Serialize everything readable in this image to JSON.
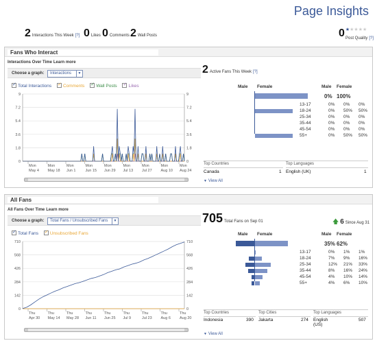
{
  "header": {
    "title": "Page Insights",
    "stats": [
      {
        "value": "2",
        "label": "Interactions This Week",
        "help": "[?]"
      },
      {
        "value": "0",
        "label": "Likes"
      },
      {
        "value": "0",
        "label": "Comments"
      },
      {
        "value": "2",
        "label": "Wall Posts"
      }
    ],
    "quality": {
      "value": "0",
      "label": "Post Quality",
      "help": "[?]",
      "stars_filled": 1,
      "stars_total": 5
    }
  },
  "interact": {
    "title": "Fans Who Interact",
    "subtitle": "Interactions Over Time",
    "learn_more": "Learn more",
    "choose_label": "Choose a graph:",
    "choose_value": "Interactions",
    "legend": [
      {
        "label": "Total Interactions",
        "color": "#3b5998"
      },
      {
        "label": "Comments",
        "color": "#e8a736"
      },
      {
        "label": "Wall Posts",
        "color": "#3c8c48"
      },
      {
        "label": "Likes",
        "color": "#9a6ab0"
      }
    ],
    "active_value": "2",
    "active_label": "Active Fans This Week",
    "active_help": "[?]",
    "top_countries_label": "Top Countries",
    "top_languages_label": "Top Languages",
    "country": {
      "name": "Canada",
      "value": "1"
    },
    "language": {
      "name": "English (UK)",
      "value": "1"
    },
    "view_all": "View All"
  },
  "interact_demo": {
    "left_male": "Male",
    "left_female": "Female",
    "right_male": "Male",
    "right_female": "Female",
    "totals": {
      "male": "0%",
      "female": "100%"
    },
    "rows": [
      {
        "age": "13-17",
        "male": "0%",
        "female": "0%",
        "total": "0%",
        "m_frac": 0,
        "f_frac": 0
      },
      {
        "age": "18-24",
        "male": "0%",
        "female": "50%",
        "total": "50%",
        "m_frac": 0,
        "f_frac": 0.5
      },
      {
        "age": "25-34",
        "male": "0%",
        "female": "0%",
        "total": "0%",
        "m_frac": 0,
        "f_frac": 0
      },
      {
        "age": "35-44",
        "male": "0%",
        "female": "0%",
        "total": "0%",
        "m_frac": 0,
        "f_frac": 0
      },
      {
        "age": "45-54",
        "male": "0%",
        "female": "0%",
        "total": "0%",
        "m_frac": 0,
        "f_frac": 0
      },
      {
        "age": "55+",
        "male": "0%",
        "female": "50%",
        "total": "50%",
        "m_frac": 0,
        "f_frac": 0.5
      }
    ]
  },
  "allfans": {
    "title": "All Fans",
    "subtitle": "All Fans Over Time",
    "learn_more": "Learn more",
    "choose_label": "Choose a graph:",
    "choose_value": "Total Fans / Unsubscribed Fans",
    "legend": [
      {
        "label": "Total Fans",
        "color": "#3b5998"
      },
      {
        "label": "Unsubscribed Fans",
        "color": "#e8a736"
      }
    ],
    "total_value": "705",
    "total_label": "Total Fans on Sep 01",
    "growth_value": "6",
    "growth_label": "Since Aug 31",
    "top_countries_label": "Top Countries",
    "top_cities_label": "Top Cities",
    "top_languages_label": "Top Languages",
    "country": {
      "name": "Indonesia",
      "value": "390"
    },
    "city": {
      "name": "Jakarta",
      "value": "274"
    },
    "language": {
      "name": "English (US)",
      "value": "507"
    },
    "view_all": "View All"
  },
  "allfans_demo": {
    "left_male": "Male",
    "left_female": "Female",
    "right_male": "Male",
    "right_female": "Female",
    "totals": {
      "male": "35%",
      "female": "62%"
    },
    "rows": [
      {
        "age": "13-17",
        "male": "0%",
        "female": "1%",
        "total": "1%",
        "m_frac": 0.0,
        "f_frac": 0.01
      },
      {
        "age": "18-24",
        "male": "7%",
        "female": "9%",
        "total": "16%",
        "m_frac": 0.07,
        "f_frac": 0.09
      },
      {
        "age": "25-34",
        "male": "12%",
        "female": "21%",
        "total": "33%",
        "m_frac": 0.12,
        "f_frac": 0.21
      },
      {
        "age": "35-44",
        "male": "8%",
        "female": "16%",
        "total": "24%",
        "m_frac": 0.08,
        "f_frac": 0.16
      },
      {
        "age": "45-54",
        "male": "4%",
        "female": "10%",
        "total": "14%",
        "m_frac": 0.04,
        "f_frac": 0.1
      },
      {
        "age": "55+",
        "male": "4%",
        "female": "6%",
        "total": "10%",
        "m_frac": 0.04,
        "f_frac": 0.06
      }
    ]
  },
  "chart_data": [
    {
      "type": "line",
      "title": "Interactions Over Time",
      "yticks": [
        "0",
        "1.8",
        "3.6",
        "5.4",
        "7.2",
        "9"
      ],
      "ylim": [
        0,
        9
      ],
      "xticks": [
        {
          "d": "Mon",
          "m": "May 4"
        },
        {
          "d": "Mon",
          "m": "May 18"
        },
        {
          "d": "Mon",
          "m": "Jun 1"
        },
        {
          "d": "Mon",
          "m": "Jun 15"
        },
        {
          "d": "Mon",
          "m": "Jun 29"
        },
        {
          "d": "Mon",
          "m": "Jul 13"
        },
        {
          "d": "Mon",
          "m": "Jul 27"
        },
        {
          "d": "Mon",
          "m": "Aug 10"
        },
        {
          "d": "Mon",
          "m": "Aug 24"
        }
      ],
      "series": [
        {
          "color": "#3b5998",
          "values": [
            0,
            0,
            0,
            0,
            0,
            0,
            0,
            0,
            0,
            0,
            0,
            0,
            0,
            0,
            0,
            0,
            0,
            0,
            0,
            0,
            0,
            0,
            0,
            0,
            0,
            0,
            0,
            0,
            0,
            0,
            0,
            0,
            0,
            0,
            0,
            0,
            0,
            0,
            0,
            0,
            0,
            0,
            0,
            0,
            0,
            0,
            0,
            0,
            0,
            0,
            0,
            0,
            0,
            0,
            0,
            0,
            0,
            0,
            0,
            0,
            1,
            0,
            0,
            1,
            0,
            0,
            0,
            0,
            0,
            0,
            0,
            0,
            2,
            0,
            0,
            0,
            0,
            0,
            0,
            0,
            0,
            1,
            0,
            0,
            0,
            0,
            0,
            0,
            0,
            0,
            1,
            2,
            0,
            0,
            1,
            0,
            7,
            0,
            2,
            1,
            0,
            1,
            0,
            0,
            0,
            1,
            0,
            2,
            1,
            0,
            0,
            0,
            2,
            1,
            7,
            0,
            0,
            2,
            0,
            0,
            0,
            1,
            1,
            0,
            0,
            2,
            0,
            0,
            0,
            1,
            0,
            1,
            0,
            0,
            0,
            0,
            2,
            0,
            0,
            1,
            0,
            0,
            2,
            0,
            0,
            1,
            0,
            0,
            0,
            0,
            1,
            1,
            0,
            0,
            0,
            2,
            0,
            0,
            0,
            1,
            2,
            0,
            0,
            1,
            0
          ]
        },
        {
          "color": "#e8a736",
          "values": [
            0,
            0,
            0,
            0,
            0,
            0,
            0,
            0,
            0,
            0,
            0,
            0,
            0,
            0,
            0,
            0,
            0,
            0,
            0,
            0,
            0,
            0,
            0,
            0,
            0,
            0,
            0,
            0,
            0,
            0,
            0,
            0,
            0,
            0,
            0,
            0,
            0,
            0,
            0,
            0,
            0,
            0,
            0,
            0,
            0,
            0,
            0,
            0,
            0,
            0,
            0,
            0,
            0,
            0,
            0,
            0,
            0,
            0,
            0,
            0,
            0,
            0,
            0,
            0,
            0,
            0,
            0,
            0,
            0,
            0,
            0,
            0,
            1,
            0,
            0,
            0,
            0,
            0,
            0,
            0,
            0,
            0,
            0,
            0,
            0,
            0,
            0,
            0,
            0,
            0,
            0,
            1,
            0,
            0,
            0,
            0,
            3,
            0,
            1,
            0,
            0,
            0,
            0,
            0,
            0,
            0,
            0,
            1,
            0,
            0,
            0,
            0,
            1,
            0,
            3,
            0,
            0,
            1,
            0,
            0,
            0,
            0,
            0,
            0,
            0,
            1,
            0,
            0,
            0,
            0,
            0,
            0,
            0,
            0,
            0,
            0,
            1,
            0,
            0,
            0,
            0,
            0,
            1,
            0,
            0,
            0,
            0,
            0,
            0,
            0,
            0,
            0,
            0,
            0,
            0,
            1,
            0,
            0,
            0,
            0,
            1,
            0,
            0,
            0,
            0
          ]
        },
        {
          "color": "#3c8c48",
          "values": [
            0,
            0,
            0,
            0,
            0,
            0,
            0,
            0,
            0,
            0,
            0,
            0,
            0,
            0,
            0,
            0,
            0,
            0,
            0,
            0,
            0,
            0,
            0,
            0,
            0,
            0,
            0,
            0,
            0,
            0,
            0,
            0,
            0,
            0,
            0,
            0,
            0,
            0,
            0,
            0,
            0,
            0,
            0,
            0,
            0,
            0,
            0,
            0,
            0,
            0,
            0,
            0,
            0,
            0,
            0,
            0,
            0,
            0,
            0,
            0,
            1,
            0,
            0,
            1,
            0,
            0,
            0,
            0,
            0,
            0,
            0,
            0,
            1,
            0,
            0,
            0,
            0,
            0,
            0,
            0,
            0,
            1,
            0,
            0,
            0,
            0,
            0,
            0,
            0,
            0,
            1,
            1,
            0,
            0,
            1,
            0,
            3,
            0,
            1,
            1,
            0,
            1,
            0,
            0,
            0,
            1,
            0,
            1,
            1,
            0,
            0,
            0,
            1,
            1,
            3,
            0,
            0,
            1,
            0,
            0,
            0,
            1,
            1,
            0,
            0,
            1,
            0,
            0,
            0,
            1,
            0,
            1,
            0,
            0,
            0,
            0,
            1,
            0,
            0,
            1,
            0,
            0,
            1,
            0,
            0,
            1,
            0,
            0,
            0,
            0,
            1,
            1,
            0,
            0,
            0,
            1,
            0,
            0,
            0,
            1,
            1,
            0,
            0,
            1,
            0
          ]
        },
        {
          "color": "#9a6ab0",
          "values": [
            0,
            0,
            0,
            0,
            0,
            0,
            0,
            0,
            0,
            0,
            0,
            0,
            0,
            0,
            0,
            0,
            0,
            0,
            0,
            0,
            0,
            0,
            0,
            0,
            0,
            0,
            0,
            0,
            0,
            0,
            0,
            0,
            0,
            0,
            0,
            0,
            0,
            0,
            0,
            0,
            0,
            0,
            0,
            0,
            0,
            0,
            0,
            0,
            0,
            0,
            0,
            0,
            0,
            0,
            0,
            0,
            0,
            0,
            0,
            0,
            0,
            0,
            0,
            0,
            0,
            0,
            0,
            0,
            0,
            0,
            0,
            0,
            0,
            0,
            0,
            0,
            0,
            0,
            0,
            0,
            0,
            0,
            0,
            0,
            0,
            0,
            0,
            0,
            0,
            0,
            0,
            0,
            0,
            0,
            0,
            0,
            1,
            0,
            0,
            0,
            0,
            0,
            0,
            0,
            0,
            0,
            0,
            0,
            0,
            0,
            0,
            0,
            0,
            0,
            1,
            0,
            0,
            0,
            0,
            0,
            0,
            0,
            0,
            0,
            0,
            0,
            0,
            0,
            0,
            0,
            0,
            0,
            0,
            0,
            0,
            0,
            0,
            0,
            0,
            0,
            0,
            0,
            0,
            0,
            0,
            0,
            0,
            0,
            0,
            0,
            0,
            0,
            0,
            0,
            0,
            0,
            0,
            0,
            0,
            0,
            0,
            0,
            0,
            0,
            0
          ]
        }
      ]
    },
    {
      "type": "line",
      "title": "All Fans Over Time",
      "yticks": [
        "0",
        "142",
        "284",
        "426",
        "568",
        "710"
      ],
      "ylim": [
        0,
        710
      ],
      "xticks": [
        {
          "d": "Thu",
          "m": "Apr 30"
        },
        {
          "d": "Thu",
          "m": "May 14"
        },
        {
          "d": "Thu",
          "m": "May 28"
        },
        {
          "d": "Thu",
          "m": "Jun 11"
        },
        {
          "d": "Thu",
          "m": "Jun 25"
        },
        {
          "d": "Thu",
          "m": "Jul 9"
        },
        {
          "d": "Thu",
          "m": "Jul 23"
        },
        {
          "d": "Thu",
          "m": "Aug 6"
        },
        {
          "d": "Thu",
          "m": "Aug 20"
        }
      ],
      "series": [
        {
          "color": "#3b5998",
          "values": [
            2,
            15,
            40,
            70,
            100,
            125,
            145,
            165,
            185,
            200,
            220,
            235,
            250,
            265,
            275,
            290,
            305,
            320,
            330,
            345,
            360,
            380,
            395,
            410,
            420,
            440,
            455,
            470,
            480,
            495,
            515,
            530,
            550,
            570,
            590,
            610,
            630,
            655,
            675,
            690,
            705
          ]
        },
        {
          "color": "#e8a736",
          "values": [
            0,
            0,
            0,
            0,
            0,
            0,
            0,
            0,
            0,
            0,
            0,
            0,
            0,
            0,
            0,
            0,
            0,
            0,
            0,
            0,
            0,
            0,
            0,
            0,
            0,
            0,
            0,
            0,
            0,
            0,
            0,
            0,
            0,
            0,
            0,
            0,
            0,
            0,
            0,
            0,
            0
          ]
        }
      ]
    }
  ]
}
